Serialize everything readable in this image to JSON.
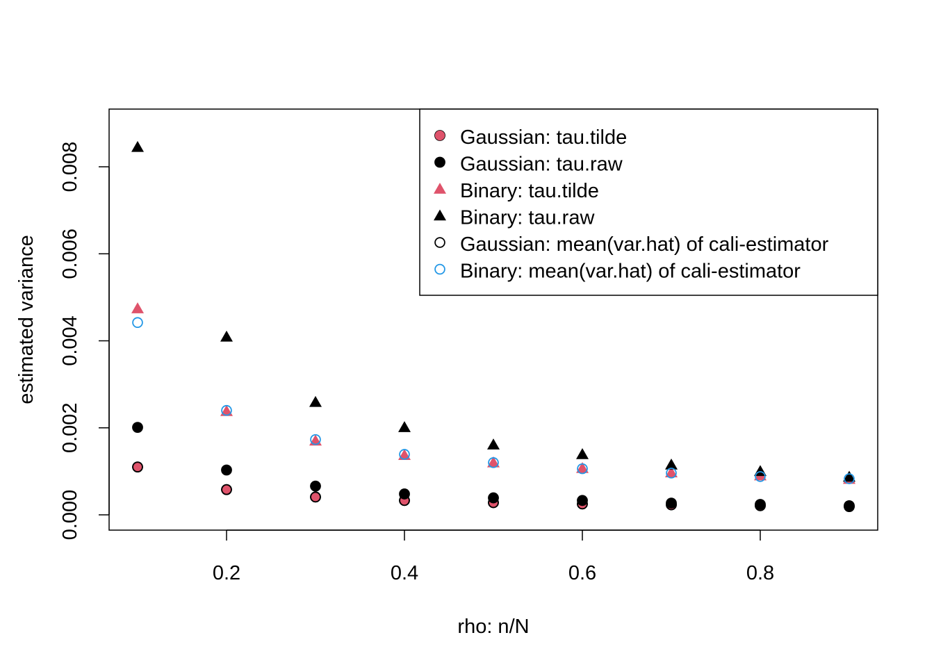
{
  "chart_data": {
    "type": "scatter",
    "title": "",
    "xlabel": "rho: n/N",
    "ylabel": "estimated variance",
    "xlim": [
      0.1,
      0.9
    ],
    "ylim": [
      0,
      0.0084
    ],
    "xticks": [
      0.2,
      0.4,
      0.6,
      0.8
    ],
    "xtick_labels": [
      "0.2",
      "0.4",
      "0.6",
      "0.8"
    ],
    "yticks": [
      0,
      0.002,
      0.004,
      0.006,
      0.008
    ],
    "ytick_labels": [
      "0.000",
      "0.002",
      "0.004",
      "0.006",
      "0.008"
    ],
    "grid": false,
    "legend_position": "top-right",
    "x": [
      0.1,
      0.2,
      0.3,
      0.4,
      0.5,
      0.6,
      0.7,
      0.8,
      0.9
    ],
    "series": [
      {
        "name": "Gaussian: tau.tilde",
        "marker": "filled-circle",
        "color": "#DF536B",
        "values": [
          0.0011,
          0.00058,
          0.00041,
          0.00033,
          0.00028,
          0.00025,
          0.00023,
          0.00021,
          0.00019
        ]
      },
      {
        "name": "Gaussian: tau.raw",
        "marker": "filled-circle",
        "color": "#000000",
        "values": [
          0.00201,
          0.00103,
          0.00066,
          0.00048,
          0.00039,
          0.00033,
          0.00027,
          0.00024,
          0.00021
        ]
      },
      {
        "name": "Binary: tau.tilde",
        "marker": "filled-triangle",
        "color": "#DF536B",
        "values": [
          0.00474,
          0.00238,
          0.0017,
          0.00137,
          0.0012,
          0.00107,
          0.00097,
          0.0009,
          0.00082
        ]
      },
      {
        "name": "Binary: tau.raw",
        "marker": "filled-triangle",
        "color": "#000000",
        "values": [
          0.00845,
          0.00409,
          0.00259,
          0.00201,
          0.00161,
          0.00139,
          0.00115,
          0.001,
          0.00087
        ]
      },
      {
        "name": "Gaussian: mean(var.hat) of cali-estimator",
        "marker": "open-circle",
        "color": "#000000",
        "values": [
          0.0011,
          0.00058,
          0.00041,
          0.00033,
          0.00028,
          0.00025,
          0.00023,
          0.00021,
          0.00019
        ]
      },
      {
        "name": "Binary: mean(var.hat) of cali-estimator",
        "marker": "open-circle",
        "color": "#2297E6",
        "values": [
          0.00442,
          0.0024,
          0.00173,
          0.00139,
          0.0012,
          0.00106,
          0.00096,
          0.00088,
          0.00083
        ]
      }
    ]
  }
}
